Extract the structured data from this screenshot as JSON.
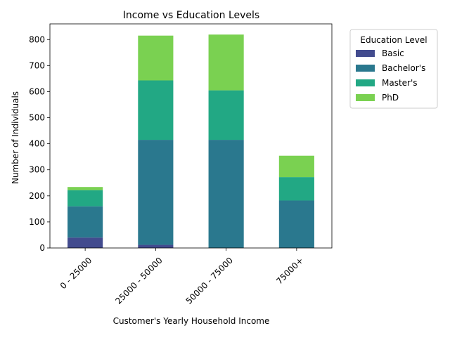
{
  "chart_data": {
    "type": "bar",
    "stacked": true,
    "title": "Income vs Education Levels",
    "xlabel": "Customer's Yearly Household Income",
    "ylabel": "Number of Individuals",
    "categories": [
      "0 - 25000",
      "25000 - 50000",
      "50000 - 75000",
      "75000+"
    ],
    "ylim": [
      0,
      860
    ],
    "yticks": [
      0,
      100,
      200,
      300,
      400,
      500,
      600,
      700,
      800
    ],
    "grid": false,
    "legend": {
      "title": "Education Level",
      "placement": "outside-right-top"
    },
    "series": [
      {
        "name": "Basic",
        "color": "#424b8e",
        "values": [
          40,
          12,
          0,
          0
        ]
      },
      {
        "name": "Bachelor's",
        "color": "#2a788e",
        "values": [
          120,
          403,
          415,
          182
        ]
      },
      {
        "name": "Master's",
        "color": "#22a884",
        "values": [
          62,
          228,
          190,
          90
        ]
      },
      {
        "name": "PhD",
        "color": "#7ad151",
        "values": [
          12,
          172,
          214,
          82
        ]
      }
    ]
  }
}
